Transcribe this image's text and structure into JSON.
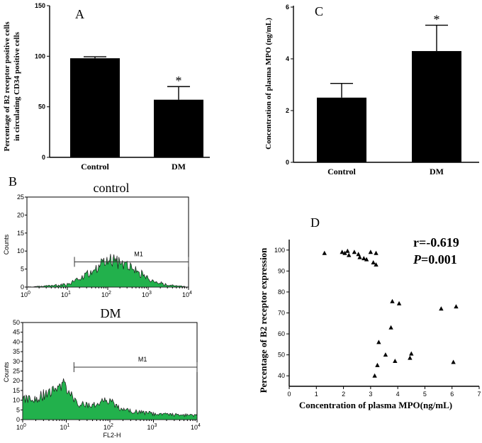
{
  "chart_data": [
    {
      "id": "A",
      "type": "bar",
      "panel_label": "A",
      "ylabel_line1": "Percentage of B2 receptor positive cells",
      "ylabel_line2": "in circulating CD34 positive cells",
      "categories": [
        "Control",
        "DM"
      ],
      "values": [
        98,
        57
      ],
      "errors": [
        1.5,
        13
      ],
      "significance": [
        "",
        "*"
      ],
      "ylim": [
        0,
        150
      ],
      "yticks": [
        "0",
        "50",
        "100",
        "150"
      ],
      "ytick_values": [
        0,
        50,
        100,
        150
      ]
    },
    {
      "id": "C",
      "type": "bar",
      "panel_label": "C",
      "ylabel": "Concentration of plasma MPO (ng/mL)",
      "categories": [
        "Control",
        "DM"
      ],
      "values": [
        2.5,
        4.3
      ],
      "errors": [
        0.55,
        1.0
      ],
      "significance": [
        "",
        "*"
      ],
      "ylim": [
        0,
        6
      ],
      "yticks": [
        "0",
        "2",
        "4",
        "6"
      ],
      "ytick_values": [
        0,
        2,
        4,
        6
      ]
    },
    {
      "id": "B",
      "type": "area",
      "panel_label": "B",
      "titles": [
        "control",
        "DM"
      ],
      "gate_label": "M1",
      "xlabel": "FL2-H",
      "ylabel": "Counts",
      "x_scale": "log",
      "xticks": [
        "10",
        "10",
        "10",
        "10",
        "10"
      ],
      "xtick_exponents": [
        "0",
        "1",
        "2",
        "3",
        "4"
      ],
      "top": {
        "ylim": [
          0,
          25
        ],
        "yticks": [
          "0",
          "5",
          "10",
          "15",
          "20",
          "25"
        ],
        "gate_range": [
          15,
          10000
        ],
        "gate_level": 7,
        "x": [
          1,
          2,
          5,
          10,
          15,
          20,
          30,
          40,
          60,
          80,
          100,
          130,
          170,
          220,
          300,
          400,
          600,
          1000,
          2000,
          5000,
          10000
        ],
        "y": [
          0,
          0.2,
          0.5,
          0.8,
          1.5,
          2.5,
          3.5,
          4,
          5.5,
          7,
          8,
          7.5,
          7,
          6.5,
          6,
          5,
          4,
          2.5,
          1,
          0.3,
          0
        ]
      },
      "bottom": {
        "ylim": [
          0,
          50
        ],
        "yticks": [
          "0",
          "5",
          "10",
          "15",
          "20",
          "25",
          "30",
          "35",
          "40",
          "45",
          "50"
        ],
        "gate_range": [
          15,
          10000
        ],
        "gate_level": 27,
        "x": [
          1,
          1.5,
          2,
          3,
          5,
          7,
          9,
          12,
          15,
          20,
          30,
          50,
          80,
          100,
          150,
          200,
          400,
          1000,
          3000,
          10000
        ],
        "y": [
          11,
          10,
          11,
          13,
          14,
          16,
          18,
          13,
          10,
          8,
          7,
          8,
          10,
          9,
          7,
          5,
          4,
          3,
          2.5,
          2
        ]
      }
    },
    {
      "id": "D",
      "type": "scatter",
      "panel_label": "D",
      "xlabel": "Concentration of plasma MPO(ng/mL)",
      "ylabel": "Percentage of B2 receptor expression",
      "stat_r": "r=-0.619",
      "stat_p_letter": "P",
      "stat_p_value": "=0.001",
      "xlim": [
        0,
        7
      ],
      "ylim": [
        35,
        105
      ],
      "xticks": [
        "0",
        "1",
        "2",
        "3",
        "4",
        "5",
        "6",
        "7"
      ],
      "yticks": [
        "40",
        "50",
        "60",
        "70",
        "80",
        "90",
        "100"
      ],
      "ytick_values": [
        40,
        50,
        60,
        70,
        80,
        90,
        100
      ],
      "points": [
        [
          1.3,
          98.5
        ],
        [
          1.95,
          99
        ],
        [
          2.05,
          98.5
        ],
        [
          2.15,
          99.5
        ],
        [
          2.2,
          97.5
        ],
        [
          2.4,
          99
        ],
        [
          2.55,
          98
        ],
        [
          2.6,
          96.5
        ],
        [
          2.75,
          96
        ],
        [
          2.85,
          95.5
        ],
        [
          3.0,
          99
        ],
        [
          3.1,
          94
        ],
        [
          3.2,
          93
        ],
        [
          3.2,
          98.5
        ],
        [
          3.15,
          40
        ],
        [
          3.25,
          45
        ],
        [
          3.3,
          56
        ],
        [
          3.55,
          50
        ],
        [
          3.75,
          63
        ],
        [
          3.8,
          75.5
        ],
        [
          3.9,
          47
        ],
        [
          4.05,
          74.5
        ],
        [
          4.45,
          48.5
        ],
        [
          4.5,
          50.5
        ],
        [
          5.6,
          72
        ],
        [
          6.05,
          46.5
        ],
        [
          6.15,
          73
        ]
      ]
    }
  ]
}
